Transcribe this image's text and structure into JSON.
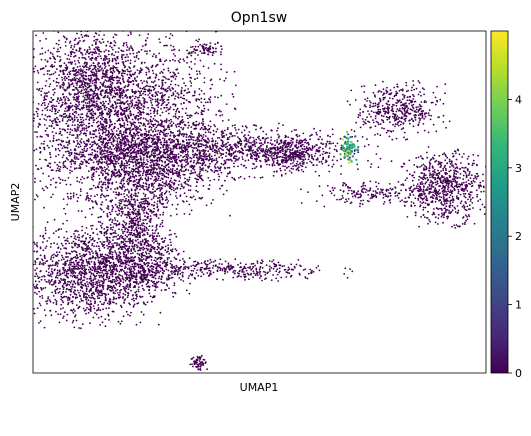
{
  "chart_data": {
    "type": "scatter",
    "title": "Opn1sw",
    "xlabel": "UMAP1",
    "ylabel": "UMAP2",
    "x_ticks_shown": false,
    "y_ticks_shown": false,
    "grid": false,
    "point_color_low": "#440154",
    "colorbar": {
      "colormap": "viridis",
      "range": [
        0,
        5
      ],
      "ticks": [
        "0",
        "1",
        "2",
        "3",
        "4"
      ],
      "tick_values": [
        0,
        1,
        2,
        3,
        4
      ],
      "stops": [
        "#440154",
        "#482878",
        "#3e4989",
        "#31688e",
        "#26828e",
        "#1f9e89",
        "#35b779",
        "#6ece58",
        "#b5de2b",
        "#fde725"
      ]
    },
    "clusters": [
      {
        "name": "upper-left-mass",
        "cx": -6.5,
        "cy": 7.2,
        "rx": 3.6,
        "ry": 2.6,
        "n": 2600,
        "expr": 0
      },
      {
        "name": "upper-left-lobe",
        "cx": -8.2,
        "cy": 8.6,
        "rx": 1.6,
        "ry": 1.6,
        "n": 500,
        "expr": 0
      },
      {
        "name": "central-stream",
        "cx": -2.0,
        "cy": 5.4,
        "rx": 5.4,
        "ry": 0.75,
        "n": 1200,
        "expr": 0
      },
      {
        "name": "stream-tip",
        "cx": 2.6,
        "cy": 5.3,
        "rx": 1.6,
        "ry": 0.5,
        "n": 350,
        "expr": 0
      },
      {
        "name": "left-middle-body",
        "cx": -5.2,
        "cy": 4.3,
        "rx": 2.7,
        "ry": 1.3,
        "n": 900,
        "expr": 0
      },
      {
        "name": "neck-bridge",
        "cx": -5.5,
        "cy": 2.2,
        "rx": 0.9,
        "ry": 1.1,
        "n": 300,
        "expr": 0
      },
      {
        "name": "lower-left-mass",
        "cx": -8.0,
        "cy": -0.3,
        "rx": 2.2,
        "ry": 1.5,
        "n": 1400,
        "expr": 0
      },
      {
        "name": "lower-left-arm",
        "cx": -5.3,
        "cy": 0.3,
        "rx": 1.5,
        "ry": 1.3,
        "n": 600,
        "expr": 0
      },
      {
        "name": "bottom-band",
        "cx": -0.5,
        "cy": -0.2,
        "rx": 3.7,
        "ry": 0.35,
        "n": 350,
        "expr": 0
      },
      {
        "name": "top-small-clump",
        "cx": -1.8,
        "cy": 10.2,
        "rx": 0.6,
        "ry": 0.2,
        "n": 60,
        "expr": 0
      },
      {
        "name": "right-upper-cluster",
        "cx": 8.3,
        "cy": 7.3,
        "rx": 1.5,
        "ry": 0.8,
        "n": 420,
        "expr": 0
      },
      {
        "name": "right-lower-cluster",
        "cx": 10.8,
        "cy": 3.7,
        "rx": 1.4,
        "ry": 1.1,
        "n": 700,
        "expr": 0
      },
      {
        "name": "right-bridge",
        "cx": 7.0,
        "cy": 3.4,
        "rx": 2.2,
        "ry": 0.35,
        "n": 180,
        "expr": 0
      },
      {
        "name": "bottom-isolate",
        "cx": -2.2,
        "cy": -4.5,
        "rx": 0.3,
        "ry": 0.25,
        "n": 60,
        "expr": 0
      },
      {
        "name": "opn1sw-expressing-cones",
        "cx": 5.75,
        "cy": 5.5,
        "rx": 0.3,
        "ry": 0.45,
        "n": 70,
        "expr": 3.1
      }
    ],
    "xlim": [
      -11,
      13
    ],
    "ylim": [
      -5,
      11
    ]
  }
}
